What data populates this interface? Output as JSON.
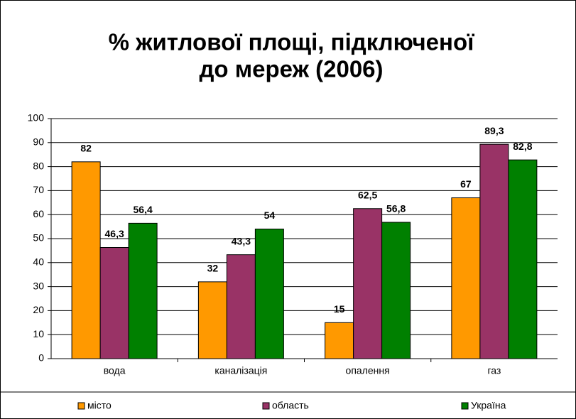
{
  "chart_data": {
    "type": "bar",
    "title": [
      "% житлової площі, підключеної",
      "до мереж (2006)"
    ],
    "categories": [
      "вода",
      "каналізація",
      "опалення",
      "газ"
    ],
    "series": [
      {
        "name": "місто",
        "color": "#ff9900",
        "values": [
          82,
          32,
          15,
          67
        ],
        "value_labels": [
          "82",
          "32",
          "15",
          "67"
        ]
      },
      {
        "name": "область",
        "color": "#993366",
        "values": [
          46.3,
          43.3,
          62.5,
          89.3
        ],
        "value_labels": [
          "46,3",
          "43,3",
          "62,5",
          "89,3"
        ]
      },
      {
        "name": "Україна",
        "color": "#008000",
        "values": [
          56.4,
          54,
          56.8,
          82.8
        ],
        "value_labels": [
          "56,4",
          "54",
          "56,8",
          "82,8"
        ]
      }
    ],
    "ylim": [
      0,
      100
    ],
    "yticks": [
      0,
      10,
      20,
      30,
      40,
      50,
      60,
      70,
      80,
      90,
      100
    ],
    "grid": true,
    "legend": "bottom"
  }
}
